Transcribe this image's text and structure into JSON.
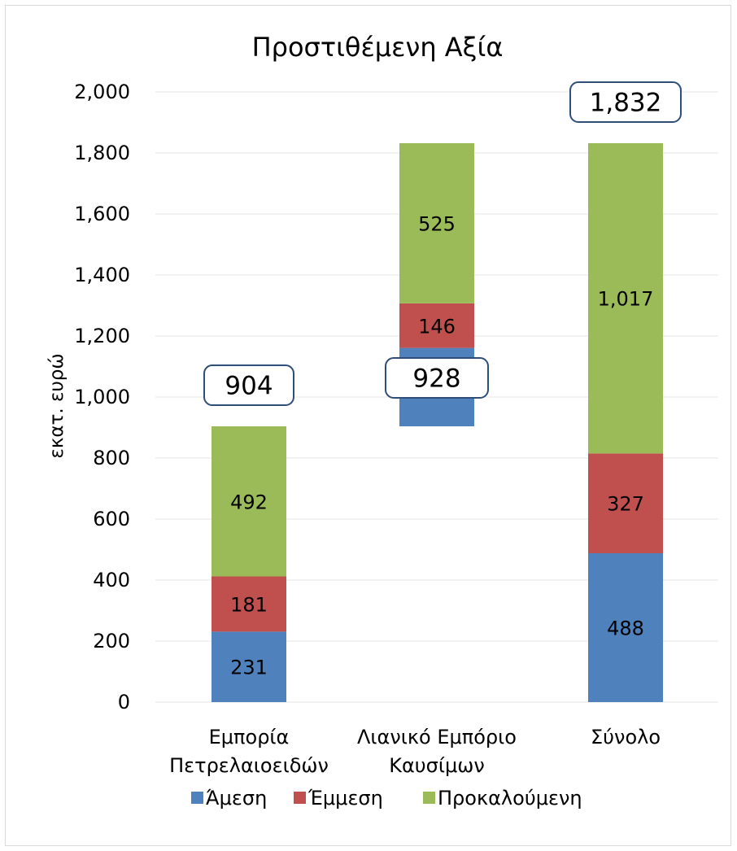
{
  "chart_data": {
    "type": "bar",
    "stacked": "waterfall",
    "title": "Προστιθέμενη Αξία",
    "ylabel": "εκατ. ευρώ",
    "xlabel": "",
    "ylim": [
      0,
      2000
    ],
    "yticks": [
      "0",
      "200",
      "400",
      "600",
      "800",
      "1,000",
      "1,200",
      "1,400",
      "1,600",
      "1,800",
      "2,000"
    ],
    "categories": [
      [
        "Εμπορία",
        "Πετρελαιοειδών"
      ],
      [
        "Λιανικό Εμπόριο",
        "Καυσίμων"
      ],
      [
        "Σύνολο"
      ]
    ],
    "bases": [
      0,
      904,
      0
    ],
    "series": [
      {
        "name": "Άμεση",
        "color": "#4f81bd",
        "values": [
          231,
          257,
          488
        ],
        "labels": [
          "231",
          "257",
          "488"
        ]
      },
      {
        "name": "Έμμεση",
        "color": "#c0504d",
        "values": [
          181,
          146,
          327
        ],
        "labels": [
          "181",
          "146",
          "327"
        ]
      },
      {
        "name": "Προκαλούμενη",
        "color": "#9bbb59",
        "values": [
          492,
          525,
          1017
        ],
        "labels": [
          "492",
          "525",
          "1,017"
        ]
      }
    ],
    "totals": [
      904,
      928,
      1832
    ],
    "total_labels": [
      "904",
      "928",
      "1,832"
    ],
    "grid": true,
    "legend": "bottom",
    "total_box_border": "#2e4e78"
  }
}
